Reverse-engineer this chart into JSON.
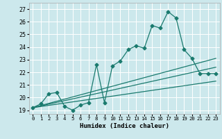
{
  "background_color": "#cce8ec",
  "grid_color": "#ffffff",
  "line_color": "#1a7a6e",
  "xlabel": "Humidex (Indice chaleur)",
  "xlim": [
    -0.5,
    23.5
  ],
  "ylim": [
    18.7,
    27.5
  ],
  "yticks": [
    19,
    20,
    21,
    22,
    23,
    24,
    25,
    26,
    27
  ],
  "xticks": [
    0,
    1,
    2,
    3,
    4,
    5,
    6,
    7,
    8,
    9,
    10,
    11,
    12,
    13,
    14,
    15,
    16,
    17,
    18,
    19,
    20,
    21,
    22,
    23
  ],
  "curve1_x": [
    0,
    1,
    2,
    3,
    4,
    5,
    6,
    7,
    8,
    9,
    10,
    11,
    12,
    13,
    14,
    15,
    16,
    17,
    18,
    19,
    20,
    21,
    22,
    23
  ],
  "curve1_y": [
    19.2,
    19.5,
    20.3,
    20.4,
    19.3,
    19.0,
    19.4,
    19.6,
    22.6,
    19.6,
    22.5,
    22.9,
    23.8,
    24.1,
    23.9,
    25.7,
    25.5,
    26.8,
    26.3,
    23.8,
    23.1,
    21.9,
    21.9,
    21.9
  ],
  "line1_x": [
    0,
    23
  ],
  "line1_y": [
    19.2,
    23.1
  ],
  "line2_x": [
    0,
    23
  ],
  "line2_y": [
    19.2,
    22.4
  ],
  "line3_x": [
    0,
    23
  ],
  "line3_y": [
    19.2,
    21.3
  ]
}
